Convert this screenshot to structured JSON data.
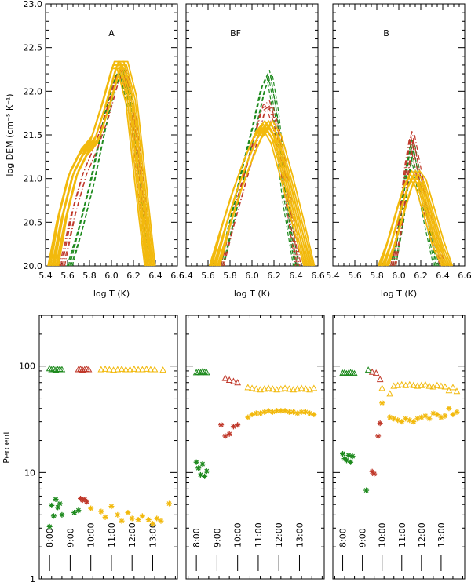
{
  "colors": {
    "green": "#1e8a1e",
    "red": "#c0392b",
    "orange": "#e87e04",
    "gold": "#f2b90c",
    "dark": "#333333"
  },
  "chart_data": [
    {
      "type": "line",
      "title": "A",
      "xlabel": "log T (K)",
      "ylabel": "log DEM (cm⁻⁵ K⁻¹)",
      "xlim": [
        5.4,
        6.6
      ],
      "ylim": [
        20.0,
        23.0
      ],
      "xticks": [
        "5.4",
        "5.6",
        "5.8",
        "6.0",
        "6.2",
        "6.4",
        "6.6"
      ],
      "yticks": [
        "20.0",
        "20.5",
        "21.0",
        "21.5",
        "22.0",
        "22.5",
        "23.0"
      ],
      "series": [
        {
          "color": "green",
          "style": "dashed",
          "x": [
            5.62,
            5.72,
            5.82,
            5.92,
            6.02,
            6.1,
            6.18,
            6.26,
            6.34
          ],
          "y": [
            20.0,
            20.45,
            20.95,
            21.55,
            22.1,
            22.25,
            21.8,
            20.9,
            20.0
          ]
        },
        {
          "color": "red",
          "style": "dashdot",
          "x": [
            5.55,
            5.65,
            5.75,
            5.85,
            5.95,
            6.05,
            6.12,
            6.2,
            6.28,
            6.35
          ],
          "y": [
            20.0,
            20.6,
            21.05,
            21.35,
            21.7,
            22.15,
            22.25,
            21.7,
            20.8,
            20.0
          ]
        },
        {
          "color": "gold",
          "style": "solid",
          "x": [
            5.47,
            5.55,
            5.65,
            5.75,
            5.85,
            5.95,
            6.05,
            6.1,
            6.18,
            6.26,
            6.35
          ],
          "y": [
            20.0,
            20.55,
            21.05,
            21.3,
            21.45,
            21.85,
            22.3,
            22.3,
            21.9,
            21.0,
            20.0
          ]
        }
      ]
    },
    {
      "type": "line",
      "title": "BF",
      "xlabel": "log T (K)",
      "xlim": [
        5.4,
        6.6
      ],
      "ylim": [
        20.0,
        23.0
      ],
      "xticks": [
        "5.4",
        "5.6",
        "5.8",
        "6.0",
        "6.2",
        "6.4",
        "6.6"
      ],
      "series": [
        {
          "color": "green",
          "style": "dashed",
          "x": [
            5.72,
            5.82,
            5.92,
            6.02,
            6.1,
            6.16,
            6.22,
            6.3,
            6.4
          ],
          "y": [
            20.0,
            20.55,
            21.1,
            21.6,
            22.05,
            22.2,
            21.75,
            20.8,
            20.0
          ]
        },
        {
          "color": "red",
          "style": "dashdot",
          "x": [
            5.72,
            5.82,
            5.92,
            6.02,
            6.1,
            6.16,
            6.24,
            6.34,
            6.42
          ],
          "y": [
            20.0,
            20.5,
            20.95,
            21.4,
            21.8,
            21.85,
            21.5,
            20.7,
            20.0
          ]
        },
        {
          "color": "gold",
          "style": "solid",
          "x": [
            5.66,
            5.76,
            5.86,
            5.96,
            6.06,
            6.14,
            6.22,
            6.32,
            6.42,
            6.52
          ],
          "y": [
            20.0,
            20.45,
            20.85,
            21.2,
            21.5,
            21.62,
            21.45,
            21.0,
            20.5,
            20.0
          ]
        }
      ]
    },
    {
      "type": "line",
      "title": "B",
      "xlabel": "log T (K)",
      "xlim": [
        5.4,
        6.6
      ],
      "ylim": [
        20.0,
        23.0
      ],
      "xticks": [
        "5.4",
        "5.6",
        "5.8",
        "6.0",
        "6.2",
        "6.4",
        "6.6"
      ],
      "series": [
        {
          "color": "green",
          "style": "dashed",
          "x": [
            5.95,
            6.02,
            6.08,
            6.12,
            6.18,
            6.26,
            6.34
          ],
          "y": [
            20.0,
            20.5,
            21.1,
            21.4,
            21.0,
            20.5,
            20.0
          ]
        },
        {
          "color": "red",
          "style": "dashdot",
          "x": [
            5.95,
            6.02,
            6.08,
            6.12,
            6.18,
            6.28,
            6.4
          ],
          "y": [
            20.0,
            20.55,
            21.2,
            21.5,
            21.1,
            20.5,
            20.0
          ]
        },
        {
          "color": "gold",
          "style": "solid",
          "x": [
            5.86,
            5.94,
            6.02,
            6.08,
            6.14,
            6.2,
            6.28,
            6.36,
            6.44
          ],
          "y": [
            20.0,
            20.3,
            20.65,
            20.9,
            21.05,
            20.95,
            20.6,
            20.25,
            20.0
          ]
        }
      ]
    },
    {
      "type": "scatter",
      "ylabel": "Percent",
      "yscale": "log",
      "ylim": [
        1,
        300
      ],
      "yticks": [
        "1",
        "10",
        "100"
      ],
      "time_labels": [
        "8:00",
        "9:00",
        "10:00",
        "11:00",
        "12:00",
        "13:00"
      ],
      "series": [
        {
          "color": "green",
          "marker": "triangle",
          "x": [
            8.0,
            8.1,
            8.2,
            8.3,
            8.4,
            8.5,
            8.6
          ],
          "y": [
            95,
            93,
            94,
            92,
            93,
            94,
            93
          ]
        },
        {
          "color": "red",
          "marker": "triangle",
          "x": [
            9.4,
            9.5,
            9.6,
            9.7,
            9.8,
            9.9
          ],
          "y": [
            93,
            94,
            92,
            93,
            94,
            93
          ]
        },
        {
          "color": "gold",
          "marker": "triangle",
          "x": [
            10.5,
            10.7,
            10.9,
            11.1,
            11.3,
            11.5,
            11.7,
            11.9,
            12.1,
            12.3,
            12.5,
            12.7,
            12.9,
            13.1,
            13.5
          ],
          "y": [
            93,
            94,
            93,
            92,
            93,
            94,
            93,
            93,
            94,
            93,
            93,
            94,
            93,
            93,
            92
          ]
        },
        {
          "color": "green",
          "marker": "star",
          "x": [
            8.0,
            8.1,
            8.2,
            8.3,
            8.4,
            8.5,
            8.6,
            9.2,
            9.4
          ],
          "y": [
            3.1,
            4.9,
            3.9,
            5.6,
            4.7,
            5.1,
            4.0,
            4.2,
            4.4
          ]
        },
        {
          "color": "red",
          "marker": "star",
          "x": [
            9.5,
            9.6,
            9.7,
            9.8
          ],
          "y": [
            5.7,
            5.5,
            5.6,
            5.3
          ]
        },
        {
          "color": "gold",
          "marker": "star",
          "x": [
            10.0,
            10.5,
            10.7,
            11.0,
            11.3,
            11.5,
            11.8,
            12.0,
            12.3,
            12.5,
            12.8,
            13.0,
            13.2,
            13.4,
            13.8
          ],
          "y": [
            4.6,
            4.3,
            3.8,
            4.8,
            4.0,
            3.5,
            4.2,
            3.7,
            3.6,
            3.9,
            3.6,
            3.3,
            3.7,
            3.5,
            5.1
          ]
        }
      ]
    },
    {
      "type": "scatter",
      "yscale": "log",
      "ylim": [
        1,
        300
      ],
      "time_labels": [
        "8:00",
        "9:00",
        "10:00",
        "11:00",
        "12:00",
        "13:00"
      ],
      "series": [
        {
          "color": "green",
          "marker": "triangle",
          "x": [
            8.0,
            8.1,
            8.2,
            8.3,
            8.4,
            8.5
          ],
          "y": [
            87,
            88,
            87,
            89,
            88,
            87
          ]
        },
        {
          "color": "red",
          "marker": "triangle",
          "x": [
            9.4,
            9.6,
            9.8,
            10.0
          ],
          "y": [
            77,
            74,
            72,
            70
          ]
        },
        {
          "color": "gold",
          "marker": "triangle",
          "x": [
            10.5,
            10.7,
            10.9,
            11.1,
            11.3,
            11.5,
            11.7,
            11.9,
            12.1,
            12.3,
            12.5,
            12.7,
            12.9,
            13.1,
            13.3,
            13.5,
            13.7
          ],
          "y": [
            63,
            62,
            61,
            60,
            61,
            62,
            61,
            60,
            61,
            62,
            61,
            60,
            61,
            62,
            61,
            60,
            62
          ]
        },
        {
          "color": "green",
          "marker": "star",
          "x": [
            8.0,
            8.1,
            8.2,
            8.3,
            8.4,
            8.5
          ],
          "y": [
            12.5,
            11.0,
            9.5,
            12.0,
            9.2,
            10.3
          ]
        },
        {
          "color": "red",
          "marker": "star",
          "x": [
            9.2,
            9.4,
            9.6,
            9.8,
            10.0
          ],
          "y": [
            28,
            22,
            23,
            27,
            28
          ]
        },
        {
          "color": "gold",
          "marker": "star",
          "x": [
            10.5,
            10.7,
            10.9,
            11.1,
            11.3,
            11.5,
            11.7,
            11.9,
            12.1,
            12.3,
            12.5,
            12.7,
            12.9,
            13.1,
            13.3,
            13.5,
            13.7
          ],
          "y": [
            33,
            35,
            36,
            36,
            37,
            38,
            37,
            38,
            38,
            38,
            37,
            37,
            36,
            37,
            37,
            36,
            35
          ]
        }
      ]
    },
    {
      "type": "scatter",
      "yscale": "log",
      "ylim": [
        1,
        300
      ],
      "time_labels": [
        "8:00",
        "9:00",
        "10:00",
        "11:00",
        "12:00",
        "13:00"
      ],
      "series": [
        {
          "color": "green",
          "marker": "triangle",
          "x": [
            8.0,
            8.1,
            8.2,
            8.3,
            8.4,
            8.5,
            8.6,
            9.3
          ],
          "y": [
            86,
            87,
            85,
            86,
            87,
            86,
            85,
            92
          ]
        },
        {
          "color": "red",
          "marker": "triangle",
          "x": [
            9.5,
            9.7,
            9.9
          ],
          "y": [
            88,
            86,
            75
          ]
        },
        {
          "color": "gold",
          "marker": "triangle",
          "x": [
            10.0,
            10.4,
            10.6,
            10.8,
            11.0,
            11.2,
            11.4,
            11.6,
            11.8,
            12.0,
            12.2,
            12.4,
            12.6,
            12.8,
            13.0,
            13.2,
            13.4,
            13.6,
            13.8
          ],
          "y": [
            62,
            55,
            65,
            66,
            67,
            66,
            67,
            66,
            65,
            66,
            67,
            65,
            64,
            66,
            65,
            64,
            59,
            63,
            58
          ]
        },
        {
          "color": "green",
          "marker": "star",
          "x": [
            8.0,
            8.1,
            8.2,
            8.3,
            8.4,
            8.5,
            9.2
          ],
          "y": [
            15,
            13.5,
            13,
            14.5,
            12.5,
            14.2,
            6.8
          ]
        },
        {
          "color": "red",
          "marker": "star",
          "x": [
            9.5,
            9.6,
            9.8,
            9.9
          ],
          "y": [
            10.2,
            9.7,
            22,
            29
          ]
        },
        {
          "color": "gold",
          "marker": "star",
          "x": [
            10.0,
            10.4,
            10.6,
            10.8,
            11.0,
            11.2,
            11.4,
            11.6,
            11.8,
            12.0,
            12.2,
            12.4,
            12.6,
            12.8,
            13.0,
            13.2,
            13.4,
            13.6,
            13.8
          ],
          "y": [
            45,
            33,
            32,
            31,
            30,
            32,
            31,
            30,
            32,
            33,
            34,
            32,
            36,
            35,
            33,
            34,
            40,
            35,
            37
          ]
        }
      ]
    }
  ]
}
